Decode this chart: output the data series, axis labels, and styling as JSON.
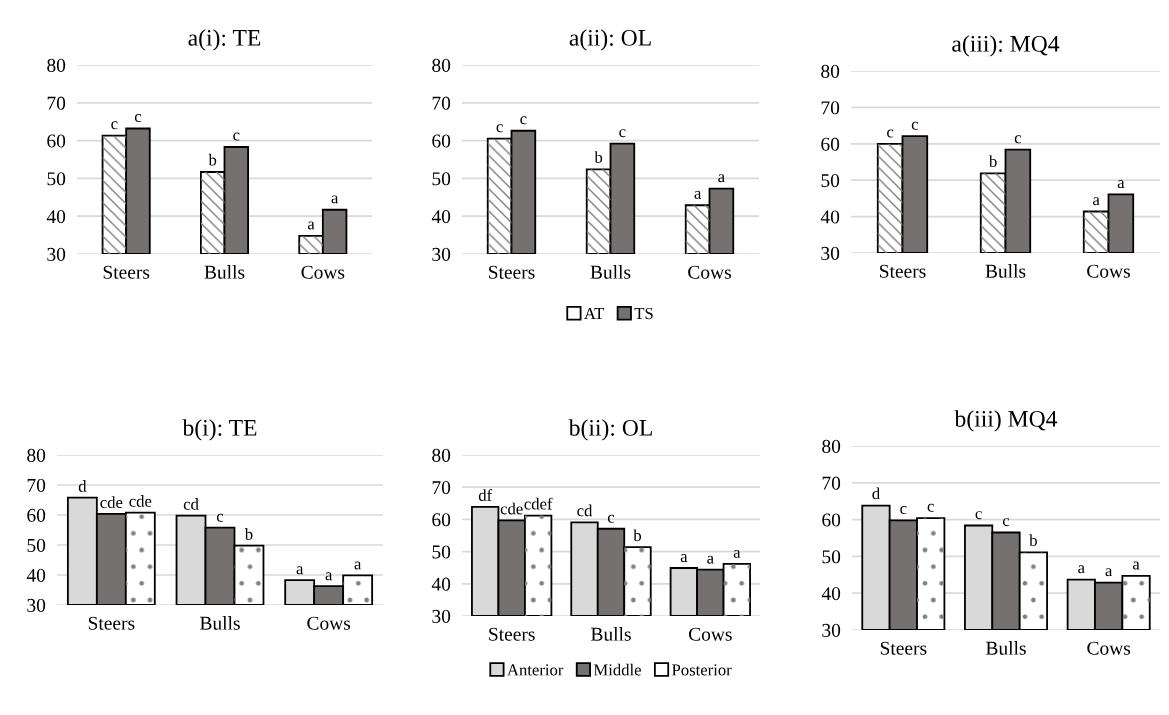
{
  "chart_data": [
    {
      "type": "bar",
      "title": "a(i): TE",
      "categories": [
        "Steers",
        "Bulls",
        "Cows"
      ],
      "ylim": [
        30,
        80
      ],
      "yticks": [
        30,
        40,
        50,
        60,
        70,
        80
      ],
      "grid": "y",
      "series": [
        {
          "color": "#ffffff",
          "values": [
            61.3,
            51.7,
            34.8
          ],
          "value_labels": [
            "c",
            "b",
            "a"
          ]
        },
        {
          "color": "#767171",
          "values": [
            63.2,
            58.3,
            41.7
          ],
          "value_labels": [
            "c",
            "c",
            "a"
          ]
        }
      ]
    },
    {
      "type": "bar",
      "title": "a(ii): OL",
      "categories": [
        "Steers",
        "Bulls",
        "Cows"
      ],
      "ylim": [
        30,
        80
      ],
      "yticks": [
        30,
        40,
        50,
        60,
        70,
        80
      ],
      "grid": "y",
      "legend": "bottom",
      "series": [
        {
          "name": "AT",
          "color": "#ffffff",
          "values": [
            60.5,
            52.4,
            42.9
          ],
          "value_labels": [
            "c",
            "b",
            "a"
          ]
        },
        {
          "name": "TS",
          "color": "#767171",
          "values": [
            62.6,
            59.2,
            47.3
          ],
          "value_labels": [
            "c",
            "c",
            "a"
          ]
        }
      ]
    },
    {
      "type": "bar",
      "title": "a(iii): MQ4",
      "categories": [
        "Steers",
        "Bulls",
        "Cows"
      ],
      "ylim": [
        30,
        80
      ],
      "yticks": [
        30,
        40,
        50,
        60,
        70,
        80
      ],
      "grid": "y",
      "series": [
        {
          "color": "#ffffff",
          "values": [
            60.0,
            51.9,
            41.4
          ],
          "value_labels": [
            "c",
            "b",
            "a"
          ]
        },
        {
          "color": "#767171",
          "values": [
            62.1,
            58.4,
            46.1
          ],
          "value_labels": [
            "c",
            "c",
            "a"
          ]
        }
      ]
    },
    {
      "type": "bar",
      "title": "b(i): TE",
      "categories": [
        "Steers",
        "Bulls",
        "Cows"
      ],
      "ylim": [
        30,
        80
      ],
      "yticks": [
        30,
        40,
        50,
        60,
        70,
        80
      ],
      "grid": "y",
      "series": [
        {
          "color": "#d9d9d9",
          "values": [
            65.8,
            59.8,
            38.3
          ],
          "value_labels": [
            "d",
            "cd",
            "a"
          ]
        },
        {
          "color": "#767171",
          "values": [
            60.4,
            55.8,
            36.3
          ],
          "value_labels": [
            "cde",
            "c",
            "a"
          ]
        },
        {
          "color": "#ffffff",
          "values": [
            60.8,
            49.8,
            39.9
          ],
          "value_labels": [
            "cde",
            "b",
            "a"
          ]
        }
      ]
    },
    {
      "type": "bar",
      "title": "b(ii): OL",
      "categories": [
        "Steers",
        "Bulls",
        "Cows"
      ],
      "ylim": [
        30,
        80
      ],
      "yticks": [
        30,
        40,
        50,
        60,
        70,
        80
      ],
      "grid": "y",
      "legend": "bottom",
      "series": [
        {
          "name": "Anterior",
          "color": "#d9d9d9",
          "values": [
            63.9,
            59.1,
            44.9
          ],
          "value_labels": [
            "df",
            "cd",
            "a"
          ]
        },
        {
          "name": "Middle",
          "color": "#767171",
          "values": [
            59.7,
            57.1,
            44.4
          ],
          "value_labels": [
            "cde",
            "c",
            "a"
          ]
        },
        {
          "name": "Posterior",
          "color": "#ffffff",
          "values": [
            61.2,
            51.4,
            46.2
          ],
          "value_labels": [
            "cdef",
            "b",
            "a"
          ]
        }
      ]
    },
    {
      "type": "bar",
      "title": "b(iii) MQ4",
      "categories": [
        "Steers",
        "Bulls",
        "Cows"
      ],
      "ylim": [
        30,
        80
      ],
      "yticks": [
        30,
        40,
        50,
        60,
        70,
        80
      ],
      "grid": "y",
      "series": [
        {
          "color": "#d9d9d9",
          "values": [
            63.8,
            58.4,
            43.7
          ],
          "value_labels": [
            "d",
            "c",
            "a"
          ]
        },
        {
          "color": "#767171",
          "values": [
            59.8,
            56.5,
            42.9
          ],
          "value_labels": [
            "c",
            "c",
            "a"
          ]
        },
        {
          "color": "#ffffff",
          "values": [
            60.4,
            51.1,
            44.7
          ],
          "value_labels": [
            "c",
            "b",
            "a"
          ]
        }
      ]
    }
  ]
}
